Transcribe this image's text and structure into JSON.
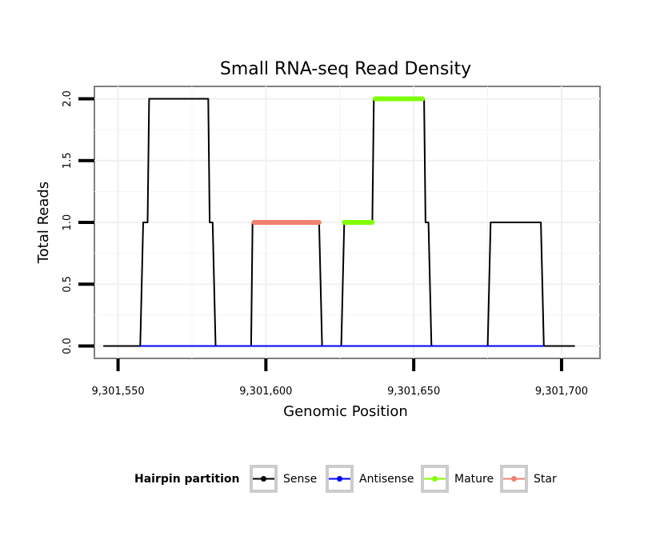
{
  "chart_data": {
    "type": "line",
    "title": "Small RNA-seq Read Density",
    "xlabel": "Genomic Position",
    "ylabel": "Total Reads",
    "xlim": [
      9301542,
      9301713
    ],
    "ylim": [
      -0.1,
      2.1
    ],
    "x_ticks": [
      {
        "value": 9301550,
        "label": "9,301,550"
      },
      {
        "value": 9301600,
        "label": "9,301,600"
      },
      {
        "value": 9301650,
        "label": "9,301,650"
      },
      {
        "value": 9301700,
        "label": "9,301,700"
      }
    ],
    "y_ticks": [
      {
        "value": 0,
        "label": "0.0"
      },
      {
        "value": 0.5,
        "label": "0.5"
      },
      {
        "value": 1,
        "label": "1.0"
      },
      {
        "value": 1.5,
        "label": "1.5"
      },
      {
        "value": 2,
        "label": "2.0"
      }
    ],
    "legend": {
      "title": "Hairpin partition",
      "position": "bottom",
      "entries": [
        {
          "name": "Sense",
          "color": "#000000"
        },
        {
          "name": "Antisense",
          "color": "#0000FF"
        },
        {
          "name": "Mature",
          "color": "#7FFF00"
        },
        {
          "name": "Star",
          "color": "#F08070"
        }
      ]
    },
    "series": [
      {
        "name": "Sense",
        "color": "#000000",
        "width": "thin",
        "points": [
          [
            9301545,
            0
          ],
          [
            9301557.5,
            0
          ],
          [
            9301558.5,
            1
          ],
          [
            9301560,
            1
          ],
          [
            9301560.5,
            2
          ],
          [
            9301580.5,
            2
          ],
          [
            9301581,
            1
          ],
          [
            9301582,
            1
          ],
          [
            9301583,
            0
          ],
          [
            9301595,
            0
          ],
          [
            9301595.5,
            1
          ],
          [
            9301618,
            1
          ],
          [
            9301619,
            0
          ],
          [
            9301625.5,
            0
          ],
          [
            9301626.5,
            1
          ],
          [
            9301636,
            1
          ],
          [
            9301636.5,
            2
          ],
          [
            9301653.5,
            2
          ],
          [
            9301654,
            1
          ],
          [
            9301655,
            1
          ],
          [
            9301656,
            0
          ],
          [
            9301675,
            0
          ],
          [
            9301676,
            1
          ],
          [
            9301693,
            1
          ],
          [
            9301694,
            0
          ],
          [
            9301704.5,
            0
          ]
        ]
      },
      {
        "name": "Antisense",
        "color": "#0000FF",
        "width": "thin",
        "points": [
          [
            9301557.5,
            0
          ],
          [
            9301694,
            0
          ]
        ]
      },
      {
        "name": "Star",
        "color": "#F08070",
        "width": "thick",
        "points": [
          [
            9301596,
            1
          ],
          [
            9301618,
            1
          ]
        ]
      },
      {
        "name": "Mature",
        "color": "#7FFF00",
        "width": "thick",
        "segments": [
          [
            [
              9301626.5,
              1
            ],
            [
              9301636,
              1
            ]
          ],
          [
            [
              9301637,
              2
            ],
            [
              9301653,
              2
            ]
          ]
        ]
      }
    ]
  }
}
